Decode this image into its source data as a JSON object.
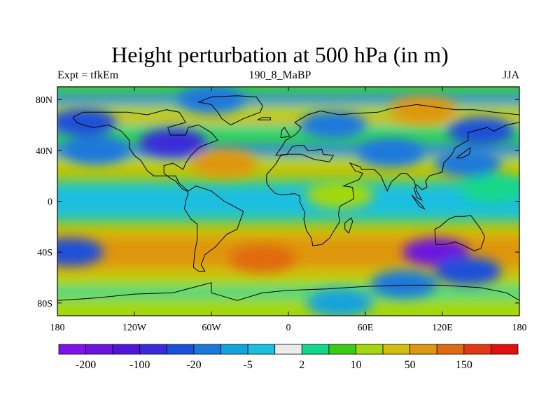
{
  "chart_data": {
    "type": "heatmap",
    "title": "Height perturbation at 500 hPa (in m)",
    "subtitle_left": "Expt = tfkEm",
    "subtitle_center": "190_8_MaBP",
    "subtitle_right": "JJA",
    "x_range": [
      -180,
      180
    ],
    "y_range": [
      -90,
      90
    ],
    "x_ticks": [
      {
        "value": -180,
        "label": "180"
      },
      {
        "value": -120,
        "label": "120W"
      },
      {
        "value": -60,
        "label": "60W"
      },
      {
        "value": 0,
        "label": "0"
      },
      {
        "value": 60,
        "label": "60E"
      },
      {
        "value": 120,
        "label": "120E"
      },
      {
        "value": 180,
        "label": "180"
      }
    ],
    "y_ticks": [
      {
        "value": 80,
        "label": "80N"
      },
      {
        "value": 40,
        "label": "40N"
      },
      {
        "value": 0,
        "label": "0"
      },
      {
        "value": -40,
        "label": "40S"
      },
      {
        "value": -80,
        "label": "80S"
      }
    ],
    "colorbar": {
      "levels": [
        -200,
        -150,
        -100,
        -50,
        -20,
        -10,
        -5,
        -2,
        2,
        5,
        10,
        20,
        50,
        100,
        150,
        200
      ],
      "labels": [
        {
          "after_bin": 1,
          "text": "-200"
        },
        {
          "after_bin": 3,
          "text": "-100"
        },
        {
          "after_bin": 5,
          "text": "-20"
        },
        {
          "after_bin": 7,
          "text": "-5"
        },
        {
          "after_bin": 9,
          "text": "2"
        },
        {
          "after_bin": 11,
          "text": "10"
        },
        {
          "after_bin": 13,
          "text": "50"
        },
        {
          "after_bin": 15,
          "text": "150"
        }
      ],
      "colors": [
        "#7f12e9",
        "#6a14e0",
        "#5016d8",
        "#3a2ad8",
        "#1a4fd9",
        "#1a78db",
        "#12a2dd",
        "#1bbfe0",
        "#ebebeb",
        "#12d88a",
        "#3ccb14",
        "#a3d80f",
        "#d2bf10",
        "#df9610",
        "#e06a10",
        "#e03a12",
        "#e0110f"
      ]
    },
    "bands": [
      {
        "lat": 87,
        "value": 8
      },
      {
        "lat": 80,
        "value": -12
      },
      {
        "lat": 73,
        "value": 12
      },
      {
        "lat": 64,
        "value": 30
      },
      {
        "lat": 56,
        "value": 3
      },
      {
        "lat": 48,
        "value": 7
      },
      {
        "lat": 40,
        "value": -14
      },
      {
        "lat": 32,
        "value": 10
      },
      {
        "lat": 24,
        "value": 30
      },
      {
        "lat": 16,
        "value": 9
      },
      {
        "lat": 8,
        "value": -3
      },
      {
        "lat": 0,
        "value": -4
      },
      {
        "lat": -8,
        "value": -4
      },
      {
        "lat": -16,
        "value": 8
      },
      {
        "lat": -24,
        "value": 30
      },
      {
        "lat": -32,
        "value": 55
      },
      {
        "lat": -40,
        "value": 75
      },
      {
        "lat": -48,
        "value": 75
      },
      {
        "lat": -56,
        "value": 35
      },
      {
        "lat": -64,
        "value": 12
      },
      {
        "lat": -72,
        "value": 3
      },
      {
        "lat": -80,
        "value": 12
      },
      {
        "lat": -87,
        "value": 10
      }
    ],
    "anomalies": [
      {
        "lon": 115,
        "lat": -40,
        "value": -160
      },
      {
        "lon": 140,
        "lat": -55,
        "value": -40
      },
      {
        "lon": 90,
        "lat": -65,
        "value": -20
      },
      {
        "lon": 150,
        "lat": 55,
        "value": -40
      },
      {
        "lon": 140,
        "lat": 30,
        "value": -20
      },
      {
        "lon": 80,
        "lat": 38,
        "value": -15
      },
      {
        "lon": -90,
        "lat": 46,
        "value": -60
      },
      {
        "lon": -150,
        "lat": 40,
        "value": -12
      },
      {
        "lon": -170,
        "lat": -40,
        "value": -30
      },
      {
        "lon": -160,
        "lat": 62,
        "value": -25
      },
      {
        "lon": -60,
        "lat": 80,
        "value": -15
      },
      {
        "lon": 105,
        "lat": 72,
        "value": 80
      },
      {
        "lon": -20,
        "lat": -45,
        "value": 120
      },
      {
        "lon": -50,
        "lat": 30,
        "value": 70
      },
      {
        "lon": 40,
        "lat": 5,
        "value": 18
      },
      {
        "lon": 35,
        "lat": 60,
        "value": -20
      },
      {
        "lon": 40,
        "lat": -80,
        "value": -8
      },
      {
        "lon": 160,
        "lat": 10,
        "value": 2
      }
    ],
    "coastlines": [
      [
        [
          -168,
          66
        ],
        [
          -160,
          70
        ],
        [
          -140,
          70
        ],
        [
          -125,
          70
        ],
        [
          -110,
          68
        ],
        [
          -95,
          72
        ],
        [
          -85,
          70
        ],
        [
          -80,
          62
        ],
        [
          -94,
          58
        ],
        [
          -92,
          52
        ],
        [
          -80,
          52
        ],
        [
          -78,
          58
        ],
        [
          -70,
          60
        ],
        [
          -60,
          54
        ],
        [
          -55,
          48
        ],
        [
          -66,
          44
        ],
        [
          -70,
          42
        ],
        [
          -76,
          36
        ],
        [
          -80,
          30
        ],
        [
          -82,
          25
        ],
        [
          -90,
          30
        ],
        [
          -97,
          28
        ],
        [
          -97,
          22
        ],
        [
          -92,
          18
        ],
        [
          -88,
          16
        ],
        [
          -83,
          10
        ],
        [
          -79,
          8
        ],
        [
          -78,
          6
        ],
        [
          -80,
          0
        ],
        [
          -81,
          -6
        ],
        [
          -76,
          -14
        ],
        [
          -71,
          -18
        ],
        [
          -71,
          -30
        ],
        [
          -73,
          -40
        ],
        [
          -74,
          -52
        ],
        [
          -70,
          -55
        ],
        [
          -65,
          -55
        ],
        [
          -68,
          -50
        ],
        [
          -65,
          -42
        ],
        [
          -57,
          -36
        ],
        [
          -48,
          -26
        ],
        [
          -40,
          -22
        ],
        [
          -35,
          -8
        ],
        [
          -50,
          0
        ],
        [
          -60,
          8
        ],
        [
          -72,
          12
        ],
        [
          -78,
          8
        ],
        [
          -85,
          14
        ],
        [
          -88,
          20
        ],
        [
          -105,
          20
        ],
        [
          -110,
          24
        ],
        [
          -115,
          32
        ],
        [
          -120,
          36
        ],
        [
          -124,
          42
        ],
        [
          -124,
          48
        ],
        [
          -130,
          55
        ],
        [
          -140,
          60
        ],
        [
          -152,
          58
        ],
        [
          -160,
          60
        ],
        [
          -165,
          62
        ],
        [
          -168,
          66
        ]
      ],
      [
        [
          -45,
          60
        ],
        [
          -52,
          65
        ],
        [
          -55,
          70
        ],
        [
          -60,
          76
        ],
        [
          -70,
          78
        ],
        [
          -60,
          82
        ],
        [
          -40,
          83
        ],
        [
          -25,
          82
        ],
        [
          -20,
          75
        ],
        [
          -22,
          70
        ],
        [
          -35,
          65
        ],
        [
          -45,
          60
        ]
      ],
      [
        [
          -10,
          36
        ],
        [
          -5,
          43
        ],
        [
          -2,
          48
        ],
        [
          5,
          52
        ],
        [
          8,
          55
        ],
        [
          10,
          58
        ],
        [
          5,
          62
        ],
        [
          10,
          65
        ],
        [
          15,
          68
        ],
        [
          25,
          71
        ],
        [
          40,
          68
        ],
        [
          50,
          69
        ],
        [
          70,
          70
        ],
        [
          80,
          73
        ],
        [
          100,
          76
        ],
        [
          115,
          74
        ],
        [
          130,
          72
        ],
        [
          145,
          72
        ],
        [
          160,
          70
        ],
        [
          180,
          68
        ],
        [
          180,
          62
        ],
        [
          170,
          60
        ],
        [
          160,
          55
        ],
        [
          155,
          58
        ],
        [
          140,
          54
        ],
        [
          140,
          48
        ],
        [
          130,
          42
        ],
        [
          128,
          38
        ],
        [
          126,
          35
        ],
        [
          121,
          30
        ],
        [
          120,
          23
        ],
        [
          110,
          20
        ],
        [
          107,
          16
        ],
        [
          108,
          11
        ],
        [
          104,
          9
        ],
        [
          100,
          13
        ],
        [
          98,
          10
        ],
        [
          100,
          3
        ],
        [
          104,
          1
        ],
        [
          100,
          8
        ],
        [
          98,
          16
        ],
        [
          92,
          22
        ],
        [
          88,
          22
        ],
        [
          80,
          15
        ],
        [
          77,
          8
        ],
        [
          72,
          20
        ],
        [
          67,
          25
        ],
        [
          57,
          25
        ],
        [
          56,
          27
        ],
        [
          48,
          30
        ],
        [
          52,
          24
        ],
        [
          58,
          22
        ],
        [
          55,
          17
        ],
        [
          45,
          13
        ],
        [
          43,
          12
        ],
        [
          50,
          11
        ],
        [
          51,
          2
        ],
        [
          40,
          -4
        ],
        [
          39,
          -10
        ],
        [
          40,
          -16
        ],
        [
          35,
          -24
        ],
        [
          32,
          -29
        ],
        [
          26,
          -34
        ],
        [
          19,
          -35
        ],
        [
          18,
          -29
        ],
        [
          14,
          -23
        ],
        [
          12,
          -14
        ],
        [
          13,
          -9
        ],
        [
          9,
          -1
        ],
        [
          9,
          4
        ],
        [
          5,
          6
        ],
        [
          -5,
          5
        ],
        [
          -10,
          6
        ],
        [
          -15,
          11
        ],
        [
          -17,
          15
        ],
        [
          -17,
          21
        ],
        [
          -10,
          29
        ],
        [
          -6,
          36
        ],
        [
          0,
          37
        ],
        [
          10,
          37
        ],
        [
          20,
          33
        ],
        [
          32,
          31
        ],
        [
          35,
          36
        ],
        [
          27,
          37
        ],
        [
          26,
          41
        ],
        [
          20,
          40
        ],
        [
          15,
          40
        ],
        [
          12,
          44
        ],
        [
          8,
          44
        ],
        [
          3,
          43
        ],
        [
          -1,
          37
        ],
        [
          -10,
          36
        ]
      ],
      [
        [
          114,
          -22
        ],
        [
          118,
          -20
        ],
        [
          125,
          -14
        ],
        [
          130,
          -12
        ],
        [
          137,
          -12
        ],
        [
          142,
          -11
        ],
        [
          145,
          -15
        ],
        [
          150,
          -22
        ],
        [
          153,
          -28
        ],
        [
          150,
          -37
        ],
        [
          145,
          -39
        ],
        [
          139,
          -36
        ],
        [
          135,
          -34
        ],
        [
          130,
          -32
        ],
        [
          122,
          -34
        ],
        [
          115,
          -34
        ],
        [
          114,
          -22
        ]
      ],
      [
        [
          -180,
          -78
        ],
        [
          -150,
          -76
        ],
        [
          -120,
          -73
        ],
        [
          -90,
          -72
        ],
        [
          -60,
          -64
        ],
        [
          -60,
          -72
        ],
        [
          -40,
          -78
        ],
        [
          -20,
          -72
        ],
        [
          0,
          -70
        ],
        [
          30,
          -69
        ],
        [
          60,
          -67
        ],
        [
          90,
          -66
        ],
        [
          120,
          -66
        ],
        [
          150,
          -68
        ],
        [
          170,
          -72
        ],
        [
          180,
          -78
        ]
      ],
      [
        [
          96,
          5
        ],
        [
          104,
          -3
        ],
        [
          106,
          -6
        ],
        [
          102,
          -4
        ],
        [
          96,
          5
        ]
      ],
      [
        [
          -6,
          50
        ],
        [
          -5,
          56
        ],
        [
          -3,
          58
        ],
        [
          0,
          53
        ],
        [
          1,
          51
        ],
        [
          -6,
          50
        ]
      ],
      [
        [
          -24,
          64
        ],
        [
          -20,
          66
        ],
        [
          -14,
          66
        ],
        [
          -14,
          64
        ],
        [
          -24,
          64
        ]
      ],
      [
        [
          49,
          -13
        ],
        [
          50,
          -16
        ],
        [
          47,
          -25
        ],
        [
          44,
          -22
        ],
        [
          44,
          -17
        ],
        [
          49,
          -13
        ]
      ],
      [
        [
          131,
          34
        ],
        [
          135,
          34
        ],
        [
          141,
          37
        ],
        [
          142,
          42
        ],
        [
          140,
          41
        ],
        [
          131,
          34
        ]
      ]
    ]
  }
}
